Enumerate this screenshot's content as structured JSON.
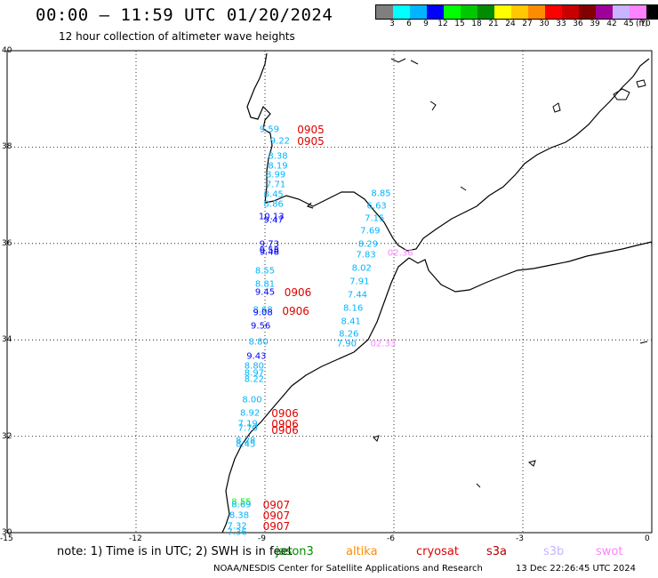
{
  "header": {
    "title": "00:00 – 11:59 UTC 01/20/2024",
    "subtitle": "12 hour collection of altimeter wave heights"
  },
  "legend": {
    "colors": [
      "#7f7f7f",
      "#00ffff",
      "#00b4ff",
      "#0000ff",
      "#00ff00",
      "#00c800",
      "#008c00",
      "#ffff00",
      "#ffc800",
      "#ff8c00",
      "#ff0000",
      "#c80000",
      "#820000",
      "#a0009a",
      "#c8b4ff",
      "#ff82ff",
      "#000000"
    ],
    "labels": [
      "3",
      "6",
      "9",
      "12",
      "15",
      "18",
      "21",
      "24",
      "27",
      "30",
      "33",
      "36",
      "39",
      "42",
      "45",
      "70"
    ],
    "unit": "(ft)"
  },
  "axes": {
    "x_ticks": [
      "-15",
      "-12",
      "-9",
      "-6",
      "-3",
      "0"
    ],
    "y_ticks": [
      "40",
      "38",
      "36",
      "34",
      "32",
      "30"
    ]
  },
  "observations": [
    {
      "text": "9.59",
      "lon": -8.9,
      "lat": 38.35,
      "color": "#00b4ff"
    },
    {
      "text": "9.22",
      "lon": -8.65,
      "lat": 38.12,
      "color": "#00b4ff"
    },
    {
      "text": "8.38",
      "lon": -8.7,
      "lat": 37.8,
      "color": "#00b4ff"
    },
    {
      "text": "8.19",
      "lon": -8.7,
      "lat": 37.6,
      "color": "#00b4ff"
    },
    {
      "text": "8.99",
      "lon": -8.75,
      "lat": 37.42,
      "color": "#00b4ff"
    },
    {
      "text": "7.71",
      "lon": -8.75,
      "lat": 37.22,
      "color": "#00b4ff"
    },
    {
      "text": "8.45",
      "lon": -8.8,
      "lat": 37.02,
      "color": "#00b4ff"
    },
    {
      "text": "8.86",
      "lon": -8.8,
      "lat": 36.8,
      "color": "#00b4ff"
    },
    {
      "text": "10.13",
      "lon": -8.85,
      "lat": 36.55,
      "color": "#0000ff"
    },
    {
      "text": "9.47",
      "lon": -8.8,
      "lat": 36.48,
      "color": "#0000ff"
    },
    {
      "text": "9.73",
      "lon": -8.9,
      "lat": 35.98,
      "color": "#0000ff"
    },
    {
      "text": "9.58",
      "lon": -8.9,
      "lat": 35.85,
      "color": "#0000ff"
    },
    {
      "text": "9.48",
      "lon": -8.9,
      "lat": 35.82,
      "color": "#0000ff"
    },
    {
      "text": "8.55",
      "lon": -9.0,
      "lat": 35.42,
      "color": "#00b4ff"
    },
    {
      "text": "8.81",
      "lon": -9.0,
      "lat": 35.15,
      "color": "#00b4ff"
    },
    {
      "text": "9.45",
      "lon": -9.0,
      "lat": 34.98,
      "color": "#0000ff"
    },
    {
      "text": "8.68",
      "lon": -9.05,
      "lat": 34.62,
      "color": "#00b4ff"
    },
    {
      "text": "9.08",
      "lon": -9.05,
      "lat": 34.55,
      "color": "#0000ff"
    },
    {
      "text": "9.56",
      "lon": -9.1,
      "lat": 34.28,
      "color": "#0000ff"
    },
    {
      "text": "8.80",
      "lon": -9.15,
      "lat": 33.95,
      "color": "#00b4ff"
    },
    {
      "text": "9.43",
      "lon": -9.2,
      "lat": 33.65,
      "color": "#0000ff"
    },
    {
      "text": "8.80",
      "lon": -9.25,
      "lat": 33.45,
      "color": "#00b4ff"
    },
    {
      "text": "8.97",
      "lon": -9.25,
      "lat": 33.3,
      "color": "#00b4ff"
    },
    {
      "text": "8.22",
      "lon": -9.25,
      "lat": 33.17,
      "color": "#00b4ff"
    },
    {
      "text": "8.00",
      "lon": -9.3,
      "lat": 32.75,
      "color": "#00b4ff"
    },
    {
      "text": "8.92",
      "lon": -9.35,
      "lat": 32.48,
      "color": "#00b4ff"
    },
    {
      "text": "7.19",
      "lon": -9.4,
      "lat": 32.25,
      "color": "#00b4ff"
    },
    {
      "text": "7.70",
      "lon": -9.4,
      "lat": 32.15,
      "color": "#00b4ff"
    },
    {
      "text": "8.28",
      "lon": -9.45,
      "lat": 31.9,
      "color": "#00b4ff"
    },
    {
      "text": "8.45",
      "lon": -9.45,
      "lat": 31.82,
      "color": "#00b4ff"
    },
    {
      "text": "8.85",
      "lon": -6.3,
      "lat": 37.03,
      "color": "#00b4ff"
    },
    {
      "text": "6.63",
      "lon": -6.4,
      "lat": 36.78,
      "color": "#00b4ff"
    },
    {
      "text": "7.15",
      "lon": -6.45,
      "lat": 36.52,
      "color": "#00b4ff"
    },
    {
      "text": "7.69",
      "lon": -6.55,
      "lat": 36.25,
      "color": "#00b4ff"
    },
    {
      "text": "8.29",
      "lon": -6.6,
      "lat": 35.98,
      "color": "#00b4ff"
    },
    {
      "text": "7.83",
      "lon": -6.65,
      "lat": 35.75,
      "color": "#00b4ff"
    },
    {
      "text": "8.02",
      "lon": -6.75,
      "lat": 35.48,
      "color": "#00b4ff"
    },
    {
      "text": "7.91",
      "lon": -6.8,
      "lat": 35.2,
      "color": "#00b4ff"
    },
    {
      "text": "7.44",
      "lon": -6.85,
      "lat": 34.92,
      "color": "#00b4ff"
    },
    {
      "text": "8.16",
      "lon": -6.95,
      "lat": 34.65,
      "color": "#00b4ff"
    },
    {
      "text": "8.41",
      "lon": -7.0,
      "lat": 34.38,
      "color": "#00b4ff"
    },
    {
      "text": "8.26",
      "lon": -7.05,
      "lat": 34.12,
      "color": "#00b4ff"
    },
    {
      "text": "7.90",
      "lon": -7.1,
      "lat": 33.92,
      "color": "#00b4ff"
    },
    {
      "text": "8.55",
      "lon": -9.55,
      "lat": 30.62,
      "color": "#00ff00"
    },
    {
      "text": "8.69",
      "lon": -9.55,
      "lat": 30.58,
      "color": "#00b4ff"
    },
    {
      "text": "8.38",
      "lon": -9.6,
      "lat": 30.35,
      "color": "#00b4ff"
    },
    {
      "text": "7.32",
      "lon": -9.65,
      "lat": 30.12,
      "color": "#00b4ff"
    },
    {
      "text": "7.36",
      "lon": -9.65,
      "lat": 30.0,
      "color": "#00b4ff"
    },
    {
      "text": "02.36",
      "lon": -5.85,
      "lat": 35.8,
      "color": "#ff82ff"
    },
    {
      "text": "02.33",
      "lon": -6.25,
      "lat": 33.92,
      "color": "#ff82ff"
    }
  ],
  "passes": [
    {
      "text": "0905",
      "lon": -8.25,
      "lat": 38.35
    },
    {
      "text": "0905",
      "lon": -8.25,
      "lat": 38.12
    },
    {
      "text": "0906",
      "lon": -8.55,
      "lat": 34.98
    },
    {
      "text": "0906",
      "lon": -8.6,
      "lat": 34.6
    },
    {
      "text": "0906",
      "lon": -8.85,
      "lat": 32.48
    },
    {
      "text": "0906",
      "lon": -8.85,
      "lat": 32.25
    },
    {
      "text": "0906",
      "lon": -8.85,
      "lat": 32.12
    },
    {
      "text": "0907",
      "lon": -9.05,
      "lat": 30.58
    },
    {
      "text": "0907",
      "lon": -9.05,
      "lat": 30.35
    },
    {
      "text": "0907",
      "lon": -9.05,
      "lat": 30.12
    }
  ],
  "note": "note: 1) Time is in UTC; 2) SWH is in feet",
  "satellites": [
    {
      "name": "jason3",
      "color": "#008c00"
    },
    {
      "name": "altika",
      "color": "#ff8c00"
    },
    {
      "name": "cryosat",
      "color": "#e00000"
    },
    {
      "name": "s3a",
      "color": "#b00000"
    },
    {
      "name": "s3b",
      "color": "#c8b4ff"
    },
    {
      "name": "swot",
      "color": "#ff82ff"
    }
  ],
  "footer": {
    "credit": "NOAA/NESDIS Center for Satellite Applications and Research",
    "timestamp": "13 Dec 22:26:45 UTC 2024"
  }
}
